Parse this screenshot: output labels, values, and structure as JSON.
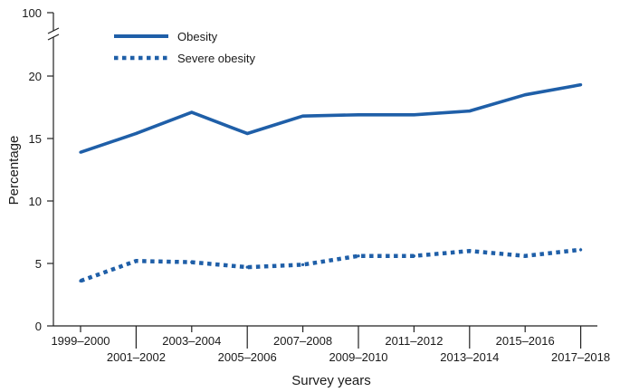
{
  "chart_data": {
    "type": "line",
    "title": "",
    "xlabel": "Survey years",
    "ylabel": "Percentage",
    "categories": [
      "1999–2000",
      "2001–2002",
      "2003–2004",
      "2005–2006",
      "2007–2008",
      "2009–2010",
      "2011–2012",
      "2013–2014",
      "2015–2016",
      "2017–2018"
    ],
    "y_ticks": [
      "0",
      "5",
      "10",
      "15",
      "20",
      "100"
    ],
    "y_axis_break": "between 20 and 100",
    "ylim": [
      0,
      100
    ],
    "grid": false,
    "legend_position": "top-left",
    "series": [
      {
        "name": "Obesity",
        "style": "solid",
        "color": "#1f5fa8",
        "values": [
          13.9,
          15.4,
          17.1,
          15.4,
          16.8,
          16.9,
          16.9,
          17.2,
          18.5,
          19.3
        ]
      },
      {
        "name": "Severe obesity",
        "style": "dotted",
        "color": "#1f5fa8",
        "values": [
          3.6,
          5.2,
          5.1,
          4.7,
          4.9,
          5.6,
          5.6,
          6.0,
          5.6,
          6.1
        ]
      }
    ]
  }
}
